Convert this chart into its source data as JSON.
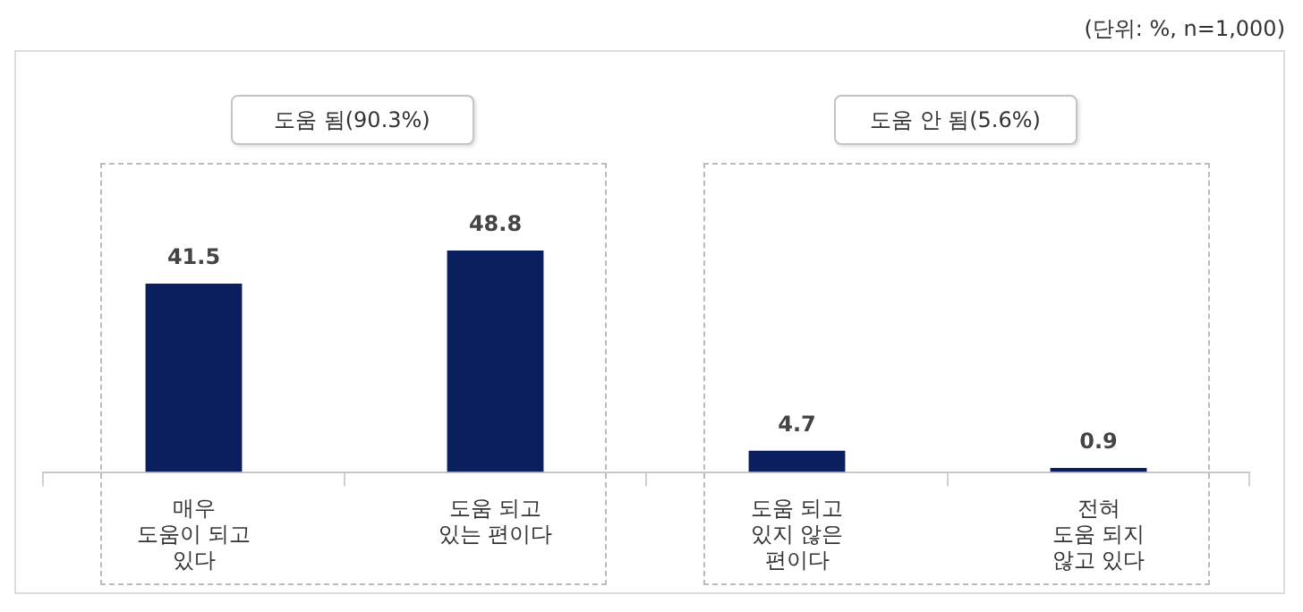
{
  "chart_data": {
    "type": "bar",
    "categories": [
      "매우\n도움이 되고\n있다",
      "도움 되고\n있는 편이다",
      "도움 되고\n있지 않은\n편이다",
      "전혀\n도움 되지\n않고 있다"
    ],
    "values": [
      41.5,
      48.8,
      4.7,
      0.9
    ],
    "color": "#0b1f5e",
    "data_labels": true,
    "grid": false,
    "legend": false,
    "annotations": [
      "도움 됨(90.3%)",
      "도움 안 됨(5.6%)",
      "(단위: %, n=1,000)"
    ]
  }
}
